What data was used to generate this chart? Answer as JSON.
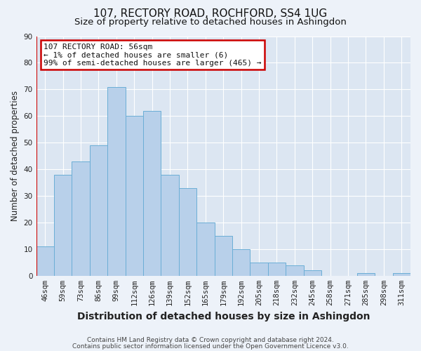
{
  "title": "107, RECTORY ROAD, ROCHFORD, SS4 1UG",
  "subtitle": "Size of property relative to detached houses in Ashingdon",
  "xlabel": "Distribution of detached houses by size in Ashingdon",
  "ylabel": "Number of detached properties",
  "bar_labels": [
    "46sqm",
    "59sqm",
    "73sqm",
    "86sqm",
    "99sqm",
    "112sqm",
    "126sqm",
    "139sqm",
    "152sqm",
    "165sqm",
    "179sqm",
    "192sqm",
    "205sqm",
    "218sqm",
    "232sqm",
    "245sqm",
    "258sqm",
    "271sqm",
    "285sqm",
    "298sqm",
    "311sqm"
  ],
  "bar_values": [
    11,
    38,
    43,
    49,
    71,
    60,
    62,
    38,
    33,
    20,
    15,
    10,
    5,
    5,
    4,
    2,
    0,
    0,
    1,
    0,
    1
  ],
  "bar_color": "#b8d0ea",
  "bar_edge_color": "#6baed6",
  "marker_color": "#cc0000",
  "ylim": [
    0,
    90
  ],
  "yticks": [
    0,
    10,
    20,
    30,
    40,
    50,
    60,
    70,
    80,
    90
  ],
  "annotation_title": "107 RECTORY ROAD: 56sqm",
  "annotation_line1": "← 1% of detached houses are smaller (6)",
  "annotation_line2": "99% of semi-detached houses are larger (465) →",
  "annotation_box_color": "#ffffff",
  "annotation_box_edge": "#cc0000",
  "footer1": "Contains HM Land Registry data © Crown copyright and database right 2024.",
  "footer2": "Contains public sector information licensed under the Open Government Licence v3.0.",
  "bg_color": "#edf2f9",
  "plot_bg_color": "#dce6f2",
  "grid_color": "#ffffff",
  "title_fontsize": 11,
  "subtitle_fontsize": 9.5,
  "xlabel_fontsize": 10,
  "ylabel_fontsize": 8.5,
  "tick_fontsize": 7.5,
  "footer_fontsize": 6.5
}
